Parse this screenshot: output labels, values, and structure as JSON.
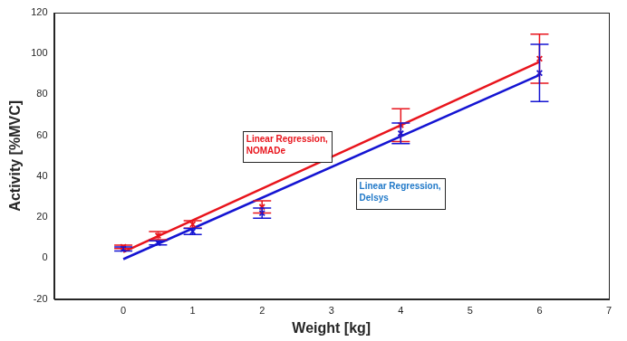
{
  "chart_data": {
    "type": "scatter",
    "xlabel": "Weight [kg]",
    "ylabel": "Activity [%MVC]",
    "xlim": [
      -1,
      7
    ],
    "xticks": [
      0,
      1,
      2,
      3,
      4,
      5,
      6,
      7
    ],
    "ylim": [
      -20,
      120
    ],
    "yticks": [
      -20,
      0,
      20,
      40,
      60,
      80,
      100,
      120
    ],
    "grid": false,
    "series": [
      {
        "type": "scatter",
        "color": "#e8141c",
        "marker": "x",
        "x": [
          0,
          0.5,
          1,
          2,
          4,
          6
        ],
        "values": [
          5.5,
          11,
          16.5,
          25,
          65,
          97.5
        ],
        "errors": [
          0.8,
          2,
          1.8,
          3,
          8,
          12
        ]
      },
      {
        "type": "scatter",
        "color": "#1414d2",
        "marker": "x",
        "x": [
          0,
          0.5,
          1,
          2,
          4,
          6
        ],
        "values": [
          4.5,
          7.5,
          13,
          22,
          61,
          90.5
        ],
        "errors": [
          1,
          1,
          1.5,
          2.5,
          5,
          14
        ]
      },
      {
        "type": "line",
        "color": "#e8141c",
        "line_style": "solid",
        "x": [
          0,
          6
        ],
        "values": [
          3,
          96
        ]
      },
      {
        "type": "line",
        "color": "#1414d2",
        "line_style": "solid",
        "x": [
          0,
          6
        ],
        "values": [
          -0.5,
          89.5
        ]
      }
    ],
    "annotations": [
      {
        "text": "Linear Regression,\nNOMADe",
        "color": "#e8141c"
      },
      {
        "text": "Linear Regression,\nDelsys",
        "color": "#1f78c8"
      }
    ]
  }
}
